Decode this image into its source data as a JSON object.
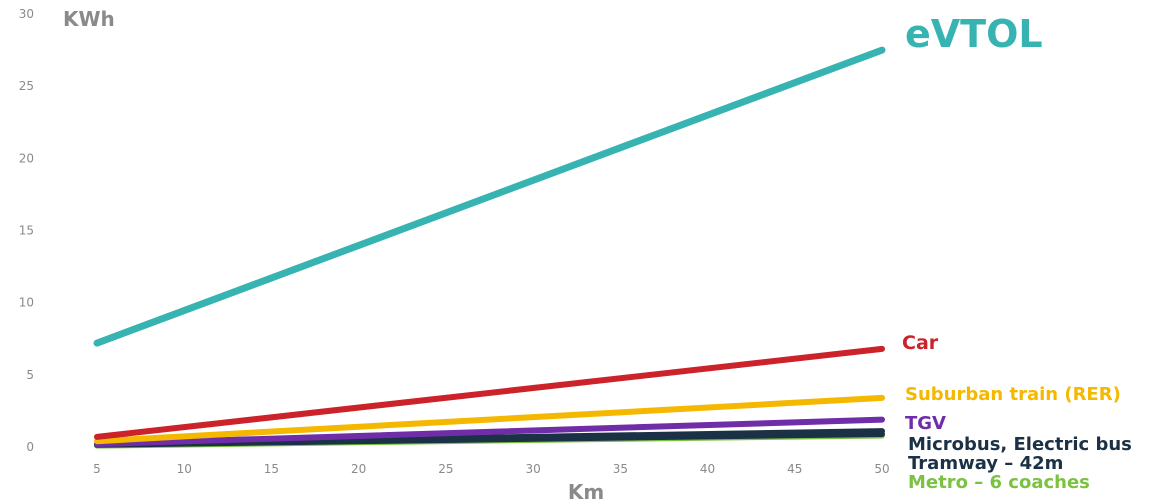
{
  "chart_data": {
    "type": "line",
    "title": "",
    "xlabel": "Km",
    "ylabel": "KWh",
    "x_ticks": [
      "5",
      "10",
      "15",
      "20",
      "25",
      "30",
      "35",
      "40",
      "45",
      "50"
    ],
    "y_ticks": [
      "0",
      "5",
      "10",
      "15",
      "20",
      "25",
      "30"
    ],
    "xlim": [
      5,
      50
    ],
    "ylim": [
      0,
      30
    ],
    "grid": false,
    "legend": "direct labels at line ends",
    "series": [
      {
        "name": "eVTOL",
        "color": "#37b4b2",
        "x": [
          5,
          50
        ],
        "y": [
          7.2,
          27.5
        ]
      },
      {
        "name": "Car",
        "color": "#cc2229",
        "x": [
          5,
          50
        ],
        "y": [
          0.7,
          6.8
        ]
      },
      {
        "name": "Suburban train (RER)",
        "color": "#f5b800",
        "x": [
          5,
          50
        ],
        "y": [
          0.4,
          3.4
        ]
      },
      {
        "name": "TGV",
        "color": "#6f2da8",
        "x": [
          5,
          50
        ],
        "y": [
          0.2,
          1.9
        ]
      },
      {
        "name": "Microbus, Electric bus",
        "color": "#1b3145",
        "x": [
          5,
          50
        ],
        "y": [
          0.2,
          1.1
        ]
      },
      {
        "name": "Tramway – 42m",
        "color": "#1b3145",
        "x": [
          5,
          50
        ],
        "y": [
          0.15,
          0.9
        ]
      },
      {
        "name": "Metro – 6 coaches",
        "color": "#7cc242",
        "x": [
          5,
          50
        ],
        "y": [
          0.1,
          0.8
        ]
      }
    ]
  }
}
